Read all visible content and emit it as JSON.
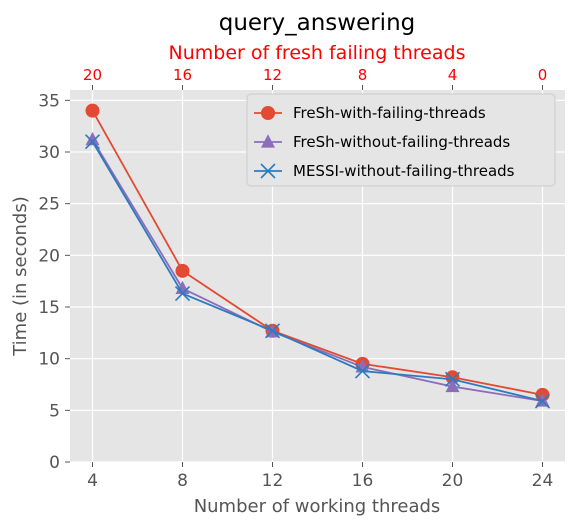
{
  "chart_data": {
    "type": "line",
    "title": "query_answering",
    "xlabel": "Number of working threads",
    "ylabel": "Time (in seconds)",
    "x": [
      4,
      8,
      12,
      16,
      20,
      24
    ],
    "xlim": [
      3,
      25
    ],
    "ylim": [
      0,
      36
    ],
    "xticks": [
      4,
      8,
      12,
      16,
      20,
      24
    ],
    "yticks": [
      0,
      5,
      10,
      15,
      20,
      25,
      30,
      35
    ],
    "top_axis": {
      "label": "Number of fresh failing threads",
      "ticks": [
        "20",
        "16",
        "12",
        "8",
        "4",
        "0"
      ],
      "color": "#ff0000"
    },
    "grid": true,
    "legend_position": "top-right",
    "series": [
      {
        "name": "FreSh-with-failing-threads",
        "values": [
          34.0,
          18.5,
          12.7,
          9.5,
          8.2,
          6.5
        ],
        "color": "#e24a33",
        "marker": "circle"
      },
      {
        "name": "FreSh-without-failing-threads",
        "values": [
          31.2,
          16.8,
          12.6,
          9.2,
          7.3,
          5.9
        ],
        "color": "#8b6dbb",
        "marker": "triangle"
      },
      {
        "name": "MESSI-without-failing-threads",
        "values": [
          31.0,
          16.3,
          12.7,
          8.8,
          8.0,
          5.9
        ],
        "color": "#2c7bbf",
        "marker": "x"
      }
    ]
  }
}
